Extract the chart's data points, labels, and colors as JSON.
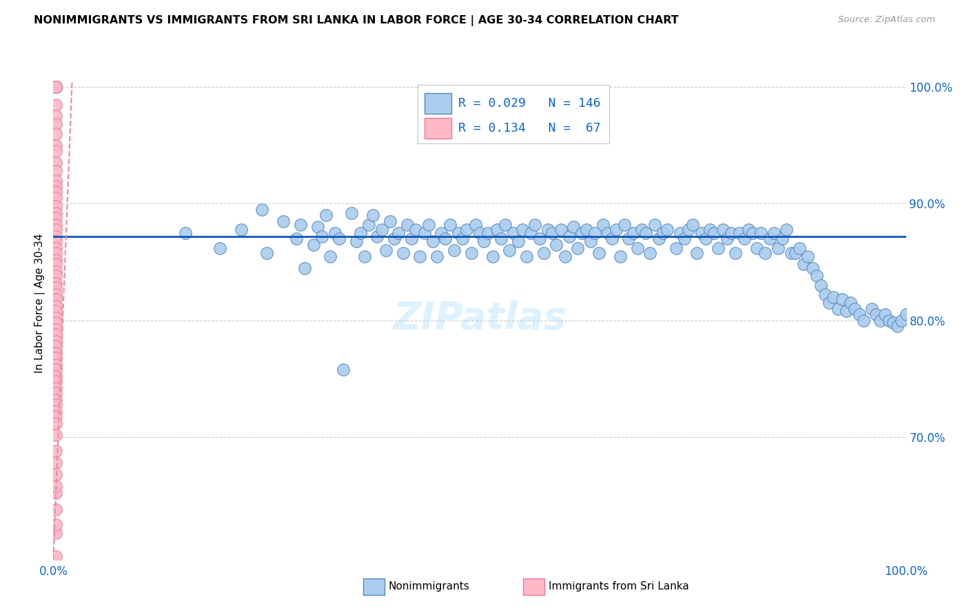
{
  "title": "NONIMMIGRANTS VS IMMIGRANTS FROM SRI LANKA IN LABOR FORCE | AGE 30-34 CORRELATION CHART",
  "source": "Source: ZipAtlas.com",
  "ylabel": "In Labor Force | Age 30-34",
  "ylabel_right_ticks": [
    "70.0%",
    "80.0%",
    "90.0%",
    "100.0%"
  ],
  "ylabel_right_values": [
    0.7,
    0.8,
    0.9,
    1.0
  ],
  "ylim": [
    0.595,
    1.035
  ],
  "xlim": [
    0.0,
    1.0
  ],
  "blue_R": 0.029,
  "blue_N": 146,
  "pink_R": 0.134,
  "pink_N": 67,
  "blue_marker_color": "#AACCEE",
  "blue_edge_color": "#5588BB",
  "pink_marker_color": "#FFB8C8",
  "pink_edge_color": "#EE7799",
  "trend_blue_color": "#1155BB",
  "trend_pink_color": "#EE8899",
  "trend_blue_y0": 0.872,
  "trend_blue_y1": 0.872,
  "trend_pink_x0": 0.0,
  "trend_pink_y0": 0.595,
  "trend_pink_x1": 0.022,
  "trend_pink_y1": 1.005,
  "watermark": "ZIPatlas",
  "legend_R_color": "#1166CC",
  "grid_color": "#CCCCCC",
  "blue_scatter_x": [
    0.155,
    0.195,
    0.22,
    0.245,
    0.25,
    0.27,
    0.285,
    0.29,
    0.295,
    0.305,
    0.31,
    0.315,
    0.32,
    0.325,
    0.33,
    0.335,
    0.34,
    0.35,
    0.355,
    0.36,
    0.365,
    0.37,
    0.375,
    0.38,
    0.385,
    0.39,
    0.395,
    0.4,
    0.405,
    0.41,
    0.415,
    0.42,
    0.425,
    0.43,
    0.435,
    0.44,
    0.445,
    0.45,
    0.455,
    0.46,
    0.465,
    0.47,
    0.475,
    0.48,
    0.485,
    0.49,
    0.495,
    0.5,
    0.505,
    0.51,
    0.515,
    0.52,
    0.525,
    0.53,
    0.535,
    0.54,
    0.545,
    0.55,
    0.555,
    0.56,
    0.565,
    0.57,
    0.575,
    0.58,
    0.585,
    0.59,
    0.595,
    0.6,
    0.605,
    0.61,
    0.615,
    0.62,
    0.625,
    0.63,
    0.635,
    0.64,
    0.645,
    0.65,
    0.655,
    0.66,
    0.665,
    0.67,
    0.675,
    0.68,
    0.685,
    0.69,
    0.695,
    0.7,
    0.705,
    0.71,
    0.715,
    0.72,
    0.73,
    0.735,
    0.74,
    0.745,
    0.75,
    0.755,
    0.76,
    0.765,
    0.77,
    0.775,
    0.78,
    0.785,
    0.79,
    0.795,
    0.8,
    0.805,
    0.81,
    0.815,
    0.82,
    0.825,
    0.83,
    0.835,
    0.84,
    0.845,
    0.85,
    0.855,
    0.86,
    0.865,
    0.87,
    0.875,
    0.88,
    0.885,
    0.89,
    0.895,
    0.9,
    0.905,
    0.91,
    0.915,
    0.92,
    0.925,
    0.93,
    0.935,
    0.94,
    0.945,
    0.95,
    0.96,
    0.965,
    0.97,
    0.975,
    0.98,
    0.985,
    0.99,
    0.995,
    1.0
  ],
  "blue_scatter_y": [
    0.875,
    0.862,
    0.878,
    0.895,
    0.858,
    0.885,
    0.87,
    0.882,
    0.845,
    0.865,
    0.88,
    0.872,
    0.89,
    0.855,
    0.875,
    0.87,
    0.758,
    0.892,
    0.868,
    0.875,
    0.855,
    0.882,
    0.89,
    0.872,
    0.878,
    0.86,
    0.885,
    0.87,
    0.875,
    0.858,
    0.882,
    0.87,
    0.878,
    0.855,
    0.875,
    0.882,
    0.868,
    0.855,
    0.875,
    0.87,
    0.882,
    0.86,
    0.875,
    0.87,
    0.878,
    0.858,
    0.882,
    0.875,
    0.868,
    0.875,
    0.855,
    0.878,
    0.87,
    0.882,
    0.86,
    0.875,
    0.868,
    0.878,
    0.855,
    0.875,
    0.882,
    0.87,
    0.858,
    0.878,
    0.875,
    0.865,
    0.878,
    0.855,
    0.872,
    0.88,
    0.862,
    0.875,
    0.878,
    0.868,
    0.875,
    0.858,
    0.882,
    0.875,
    0.87,
    0.878,
    0.855,
    0.882,
    0.87,
    0.875,
    0.862,
    0.878,
    0.875,
    0.858,
    0.882,
    0.87,
    0.875,
    0.878,
    0.862,
    0.875,
    0.87,
    0.878,
    0.882,
    0.858,
    0.875,
    0.87,
    0.878,
    0.875,
    0.862,
    0.878,
    0.87,
    0.875,
    0.858,
    0.875,
    0.87,
    0.878,
    0.875,
    0.862,
    0.875,
    0.858,
    0.87,
    0.875,
    0.862,
    0.87,
    0.878,
    0.858,
    0.858,
    0.862,
    0.848,
    0.855,
    0.845,
    0.838,
    0.83,
    0.822,
    0.815,
    0.82,
    0.81,
    0.818,
    0.808,
    0.815,
    0.81,
    0.805,
    0.8,
    0.81,
    0.805,
    0.8,
    0.805,
    0.8,
    0.798,
    0.795,
    0.8,
    0.805
  ],
  "pink_scatter_x": [
    0.003,
    0.003,
    0.003,
    0.003,
    0.003,
    0.003,
    0.003,
    0.003,
    0.003,
    0.003,
    0.003,
    0.003,
    0.003,
    0.003,
    0.003,
    0.003,
    0.003,
    0.003,
    0.003,
    0.003,
    0.003,
    0.003,
    0.003,
    0.003,
    0.003,
    0.003,
    0.003,
    0.003,
    0.003,
    0.003,
    0.003,
    0.003,
    0.003,
    0.003,
    0.003,
    0.003,
    0.003,
    0.003,
    0.003,
    0.003,
    0.003,
    0.003,
    0.003,
    0.003,
    0.003,
    0.003,
    0.003,
    0.003,
    0.003,
    0.003,
    0.003,
    0.003,
    0.003,
    0.003,
    0.003,
    0.003,
    0.003,
    0.003,
    0.003,
    0.003,
    0.003,
    0.003,
    0.003,
    0.003,
    0.003,
    0.003,
    0.003
  ],
  "pink_scatter_y": [
    1.0,
    1.0,
    1.0,
    1.0,
    1.0,
    1.0,
    1.0,
    0.985,
    0.975,
    0.968,
    0.96,
    0.95,
    0.945,
    0.935,
    0.928,
    0.92,
    0.915,
    0.91,
    0.905,
    0.898,
    0.892,
    0.888,
    0.882,
    0.878,
    0.872,
    0.868,
    0.862,
    0.858,
    0.852,
    0.848,
    0.842,
    0.838,
    0.832,
    0.828,
    0.822,
    0.818,
    0.812,
    0.808,
    0.802,
    0.798,
    0.792,
    0.788,
    0.782,
    0.778,
    0.772,
    0.768,
    0.762,
    0.758,
    0.752,
    0.748,
    0.742,
    0.738,
    0.732,
    0.728,
    0.722,
    0.718,
    0.712,
    0.702,
    0.688,
    0.678,
    0.668,
    0.652,
    0.638,
    0.618,
    0.598,
    0.658,
    0.625
  ]
}
